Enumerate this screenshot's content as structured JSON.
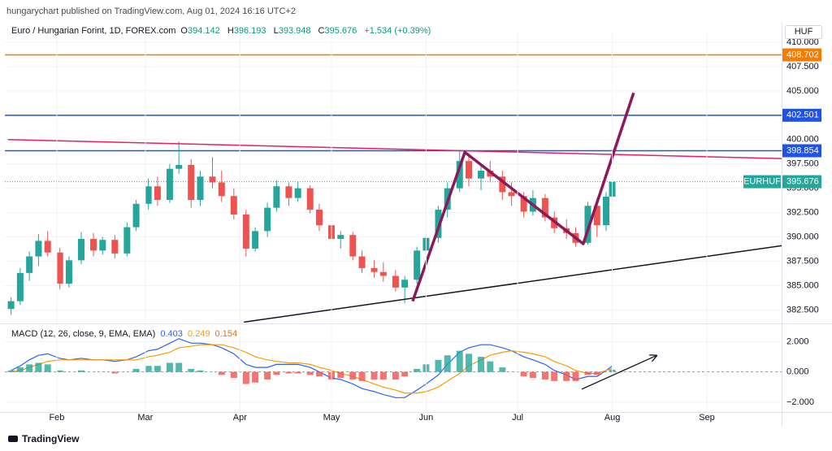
{
  "header": {
    "published": "hungarychart published on TradingView.com, Aug 01, 2024 16:16 UTC+2",
    "footer": "TradingView"
  },
  "chart_data": [
    {
      "type": "candlestick",
      "title": "Euro / Hungarian Forint, 1D, FOREX.com",
      "ohlc_letters": [
        "O",
        "H",
        "L",
        "C"
      ],
      "change": "+1.534 (+0.39%)",
      "currency": "HUF",
      "symbol": "EURHUF",
      "x": [
        2,
        5,
        8,
        11,
        14,
        18,
        21,
        25,
        29,
        32,
        36,
        40,
        43,
        47,
        50,
        54,
        57,
        61,
        64,
        68,
        71,
        75,
        79,
        82,
        86,
        89,
        93,
        96,
        100,
        103,
        107,
        110,
        114,
        117,
        121,
        124,
        128,
        131,
        135,
        138,
        142,
        145,
        149,
        152,
        156,
        159,
        163,
        166,
        170,
        173,
        177,
        180,
        184,
        187,
        191,
        194,
        197,
        199
      ],
      "open": [
        382.6,
        383.4,
        386.3,
        388.0,
        389.6,
        388.4,
        385.2,
        387.6,
        389.8,
        388.6,
        389.7,
        388.3,
        391.0,
        393.4,
        395.2,
        393.8,
        397.0,
        397.4,
        393.8,
        396.2,
        395.6,
        394.2,
        392.3,
        388.8,
        390.6,
        393.0,
        395.2,
        394.0,
        395.0,
        392.8,
        391.2,
        389.8,
        390.2,
        388.0,
        386.8,
        386.4,
        386.0,
        384.8,
        385.6,
        388.6,
        389.9,
        392.8,
        395.0,
        397.8,
        396.0,
        396.8,
        396.2,
        394.6,
        394.2,
        392.6,
        394.0,
        392.0,
        390.9,
        390.4,
        389.4,
        393.2,
        391.2,
        394.142
      ],
      "high": [
        383.8,
        386.8,
        388.5,
        390.3,
        390.6,
        388.9,
        388.0,
        390.5,
        390.4,
        390.0,
        390.2,
        391.5,
        393.8,
        396.0,
        396.2,
        397.5,
        399.8,
        398.0,
        396.8,
        398.2,
        396.8,
        395.0,
        392.8,
        391.0,
        393.5,
        395.8,
        395.6,
        395.7,
        395.3,
        393.4,
        391.8,
        390.6,
        390.5,
        388.6,
        387.6,
        387.4,
        386.6,
        386.0,
        389.0,
        390.4,
        393.2,
        395.6,
        398.9,
        398.6,
        397.4,
        397.8,
        396.8,
        395.6,
        394.6,
        394.8,
        394.4,
        392.6,
        391.8,
        391.0,
        393.6,
        394.0,
        394.6,
        396.193
      ],
      "low": [
        382.0,
        383.0,
        385.5,
        387.0,
        388.0,
        384.6,
        384.8,
        387.2,
        388.0,
        388.2,
        387.8,
        388.0,
        390.6,
        392.8,
        393.2,
        393.5,
        396.5,
        393.0,
        393.2,
        395.0,
        393.6,
        391.8,
        388.0,
        388.5,
        390.0,
        392.6,
        393.2,
        393.6,
        392.4,
        390.6,
        389.2,
        388.8,
        387.6,
        386.3,
        385.8,
        385.4,
        384.4,
        383.2,
        385.2,
        387.8,
        389.4,
        392.0,
        394.6,
        395.2,
        394.8,
        395.6,
        393.8,
        393.2,
        392.0,
        392.2,
        391.6,
        390.4,
        389.8,
        389.0,
        389.2,
        390.0,
        390.6,
        393.948
      ],
      "close": [
        383.4,
        386.3,
        388.0,
        389.6,
        388.4,
        385.2,
        387.6,
        389.8,
        388.6,
        389.7,
        388.3,
        391.0,
        393.4,
        395.2,
        393.8,
        397.0,
        397.4,
        393.8,
        396.2,
        395.6,
        394.2,
        392.3,
        388.8,
        390.6,
        393.0,
        395.2,
        394.0,
        395.0,
        392.8,
        391.2,
        389.8,
        390.2,
        388.0,
        386.8,
        386.4,
        386.0,
        384.8,
        385.6,
        388.6,
        389.9,
        392.8,
        395.0,
        397.8,
        396.0,
        396.8,
        396.2,
        394.6,
        394.2,
        392.6,
        394.0,
        392.0,
        390.9,
        390.4,
        389.4,
        393.2,
        391.2,
        394.142,
        395.676
      ],
      "colors": {
        "up": "#26a69a",
        "down": "#ef5350"
      },
      "xlim": [
        0,
        254.5
      ],
      "xticks": [
        {
          "value": 17,
          "label": "Feb"
        },
        {
          "value": 46,
          "label": "Mar"
        },
        {
          "value": 77,
          "label": "Apr"
        },
        {
          "value": 107,
          "label": "May"
        },
        {
          "value": 138,
          "label": "Jun"
        },
        {
          "value": 168,
          "label": "Jul"
        },
        {
          "value": 199,
          "label": "Aug"
        },
        {
          "value": 230,
          "label": "Sep"
        }
      ],
      "ylim": [
        381.2,
        411
      ],
      "yticks": [
        {
          "value": 382.5,
          "label": "382.500"
        },
        {
          "value": 385,
          "label": "385.000"
        },
        {
          "value": 387.5,
          "label": "387.500"
        },
        {
          "value": 390,
          "label": "390.000"
        },
        {
          "value": 392.5,
          "label": "392.500"
        },
        {
          "value": 395,
          "label": "395.000"
        },
        {
          "value": 397.5,
          "label": "397.500"
        },
        {
          "value": 400,
          "label": "400.000"
        },
        {
          "value": 402.5,
          "label": "402.500"
        },
        {
          "value": 405,
          "label": "405.000"
        },
        {
          "value": 407.5,
          "label": "407.500"
        },
        {
          "value": 410,
          "label": "410.000"
        }
      ],
      "levels": [
        {
          "value": 408.702,
          "color": "#f57c00"
        },
        {
          "value": 402.501,
          "color": "#1e53e5"
        },
        {
          "value": 398.854,
          "color": "#1e53e5"
        }
      ],
      "trendlines": [
        {
          "color": "#e91e63",
          "width": 1.5,
          "points": [
            {
              "x": 1.0,
              "y": 400.0
            },
            {
              "x": 254.5,
              "y": 398.05
            }
          ]
        },
        {
          "color": "#131722",
          "width": 1.5,
          "points": [
            {
              "x": 78.3,
              "y": 381.25
            },
            {
              "x": 254.5,
              "y": 389.1
            }
          ]
        },
        {
          "color": "#8b1a5a",
          "width": 3.5,
          "points": [
            {
              "x": 133.6,
              "y": 383.4
            },
            {
              "x": 150.7,
              "y": 398.7
            },
            {
              "x": 189.5,
              "y": 389.3
            },
            {
              "x": 206,
              "y": 404.8
            }
          ]
        }
      ]
    },
    {
      "type": "macd",
      "title": "MACD (12, 26, close, 9, EMA, EMA)",
      "series": [
        {
          "color": "#2962ff",
          "values": [
            0.1,
            0.4,
            0.8,
            1.1,
            1.2,
            0.9,
            0.8,
            0.9,
            0.8,
            0.8,
            0.7,
            0.8,
            1.0,
            1.4,
            1.5,
            1.9,
            2.2,
            1.9,
            1.9,
            1.8,
            1.6,
            1.2,
            0.5,
            0.3,
            0.3,
            0.5,
            0.5,
            0.5,
            0.3,
            0.0,
            -0.4,
            -0.5,
            -0.8,
            -1.1,
            -1.3,
            -1.5,
            -1.7,
            -1.7,
            -1.2,
            -0.8,
            -0.2,
            0.5,
            1.3,
            1.6,
            1.8,
            1.8,
            1.6,
            1.4,
            1.0,
            0.8,
            0.5,
            0.1,
            -0.2,
            -0.5,
            -0.3,
            -0.3,
            0.1,
            0.403
          ]
        },
        {
          "color": "#ff9800",
          "values": [
            0.0,
            0.1,
            0.3,
            0.5,
            0.7,
            0.8,
            0.8,
            0.8,
            0.8,
            0.8,
            0.8,
            0.8,
            0.8,
            1.0,
            1.1,
            1.3,
            1.6,
            1.7,
            1.8,
            1.8,
            1.8,
            1.6,
            1.3,
            1.0,
            0.8,
            0.7,
            0.6,
            0.6,
            0.5,
            0.3,
            0.1,
            -0.1,
            -0.3,
            -0.5,
            -0.8,
            -1.0,
            -1.2,
            -1.4,
            -1.4,
            -1.3,
            -1.0,
            -0.6,
            -0.1,
            0.4,
            0.8,
            1.1,
            1.3,
            1.4,
            1.3,
            1.2,
            1.0,
            0.7,
            0.4,
            0.1,
            -0.1,
            -0.1,
            0.1,
            0.249
          ]
        },
        {
          "type": "histogram",
          "colors": {
            "positive": "#26a69a",
            "negative": "#ef5350"
          },
          "values": [
            0.1,
            0.3,
            0.5,
            0.6,
            0.5,
            0.1,
            0,
            0.1,
            0,
            0,
            -0.1,
            0,
            0.2,
            0.4,
            0.4,
            0.6,
            0.6,
            0.2,
            0.1,
            0,
            -0.2,
            -0.4,
            -0.8,
            -0.7,
            -0.5,
            -0.2,
            -0.1,
            -0.1,
            -0.2,
            -0.3,
            -0.5,
            -0.4,
            -0.5,
            -0.6,
            -0.5,
            -0.5,
            -0.5,
            -0.3,
            0.2,
            0.5,
            0.8,
            1.1,
            1.4,
            1.2,
            1.0,
            0.7,
            0.3,
            0,
            -0.3,
            -0.4,
            -0.5,
            -0.6,
            -0.6,
            -0.6,
            -0.2,
            -0.2,
            0,
            0.154
          ]
        }
      ],
      "ylim": [
        -2.65,
        3.1
      ],
      "yticks": [
        {
          "value": 2,
          "label": "2.000"
        },
        {
          "value": 0,
          "label": "0.000"
        },
        {
          "value": -2,
          "label": "−2.000"
        }
      ],
      "trendlines": [
        {
          "color": "#131722",
          "width": 1.3,
          "arrow": true,
          "points": [
            {
              "x": 189,
              "y": -1.14
            },
            {
              "x": 213.5,
              "y": 1.08
            }
          ]
        }
      ]
    }
  ]
}
